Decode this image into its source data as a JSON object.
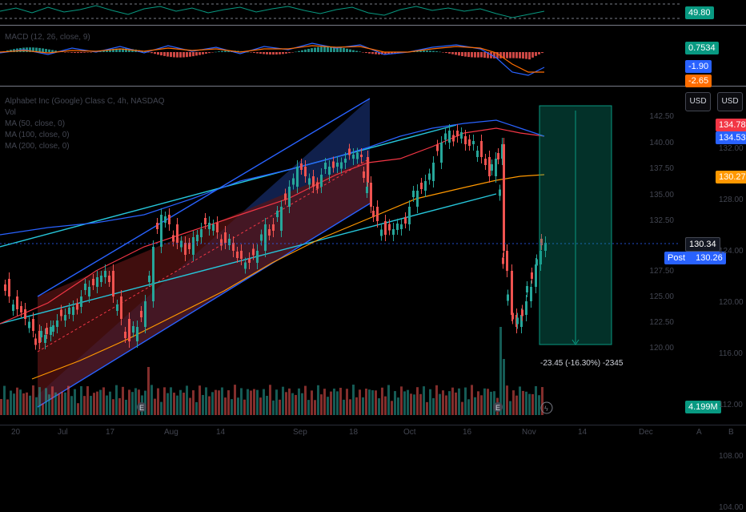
{
  "rsi": {
    "value": "49.80",
    "color": "#089981"
  },
  "macd": {
    "label": "MACD (12, 26, close, 9)",
    "values": [
      {
        "text": "0.7534",
        "color": "#089981"
      },
      {
        "text": "-1.90",
        "color": "#2962ff"
      },
      {
        "text": "-2.65",
        "color": "#ff6d00"
      }
    ]
  },
  "main": {
    "legend": [
      "Alphabet Inc (Google) Class C, 4h, NASDAQ",
      "Vol",
      "MA (50, close, 0)",
      "MA (100, close, 0)",
      "MA (200, close, 0)"
    ],
    "currency_buttons": [
      "USD",
      "USD"
    ],
    "left_ticks": [
      "142.50",
      "140.00",
      "137.50",
      "135.00",
      "132.50",
      "127.50",
      "125.00",
      "122.50",
      "120.00"
    ],
    "right_ticks": [
      "132.00",
      "128.00",
      "124.00",
      "120.00",
      "116.00",
      "112.00",
      "108.00",
      "104.00"
    ],
    "price_labels": [
      {
        "text": "134.78",
        "color": "#f23645"
      },
      {
        "text": "134.53",
        "color": "#2962ff"
      },
      {
        "text": "130.27",
        "color": "#ff9800"
      },
      {
        "text": "130.34",
        "color": "#131722"
      },
      {
        "text": "4.199M",
        "color": "#089981"
      }
    ],
    "post": {
      "label": "Post",
      "value": "130.26",
      "color": "#2962ff"
    },
    "position_label": "-23.45 (-16.30%) -2345",
    "earnings_marker": "E"
  },
  "x_axis": {
    "labels": [
      "20",
      "Jul",
      "17",
      "Aug",
      "14",
      "Sep",
      "18",
      "Oct",
      "16",
      "Nov",
      "14",
      "Dec"
    ],
    "buttons": [
      "A",
      "B"
    ]
  }
}
